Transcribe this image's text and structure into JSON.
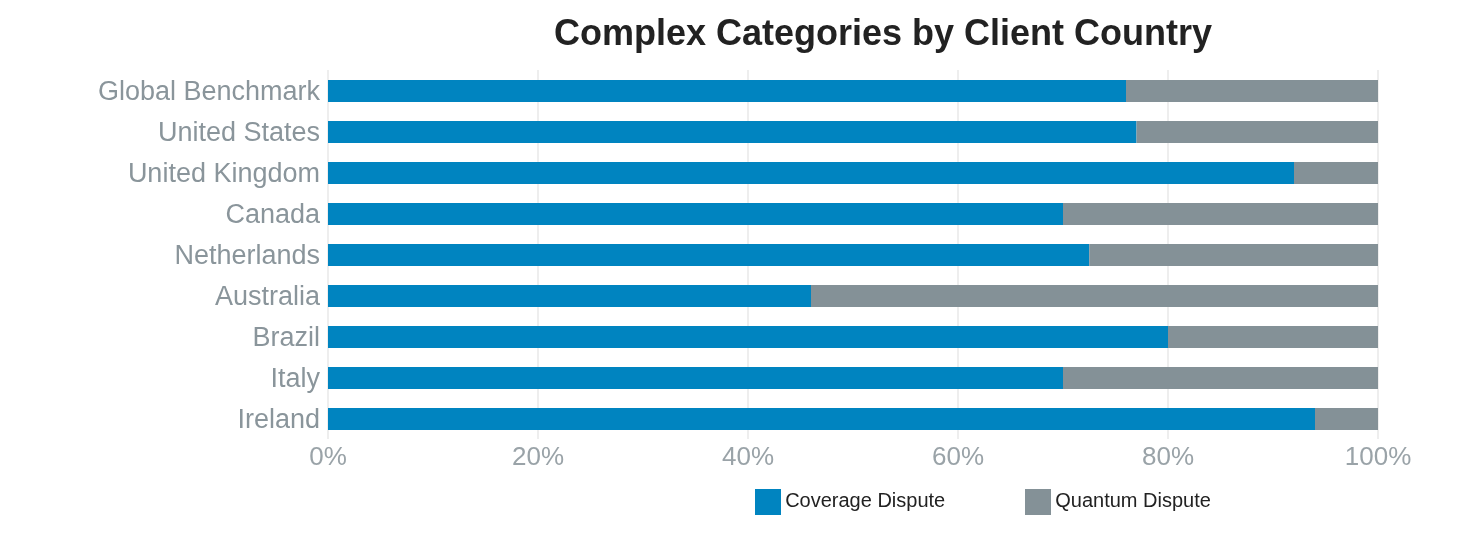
{
  "chart_data": {
    "type": "bar",
    "orientation": "horizontal",
    "stacked": true,
    "title": "Complex Categories by Client Country",
    "categories": [
      "Global Benchmark",
      "United States",
      "United Kingdom",
      "Canada",
      "Netherlands",
      "Australia",
      "Brazil",
      "Italy",
      "Ireland"
    ],
    "series": [
      {
        "name": "Coverage Dispute",
        "color": "#0084c0",
        "values": [
          76,
          77,
          92,
          70,
          72.5,
          46,
          80,
          70,
          94
        ]
      },
      {
        "name": "Quantum Dispute",
        "color": "#849197",
        "values": [
          24,
          23,
          8,
          30,
          27.5,
          54,
          20,
          30,
          6
        ]
      }
    ],
    "xlim": [
      0,
      100
    ],
    "xticks": [
      {
        "value": 0,
        "label": "0%"
      },
      {
        "value": 20,
        "label": "20%"
      },
      {
        "value": 40,
        "label": "40%"
      },
      {
        "value": 60,
        "label": "60%"
      },
      {
        "value": 80,
        "label": "80%"
      },
      {
        "value": 100,
        "label": "100%"
      }
    ],
    "grid": "x",
    "legend": "bottom"
  }
}
